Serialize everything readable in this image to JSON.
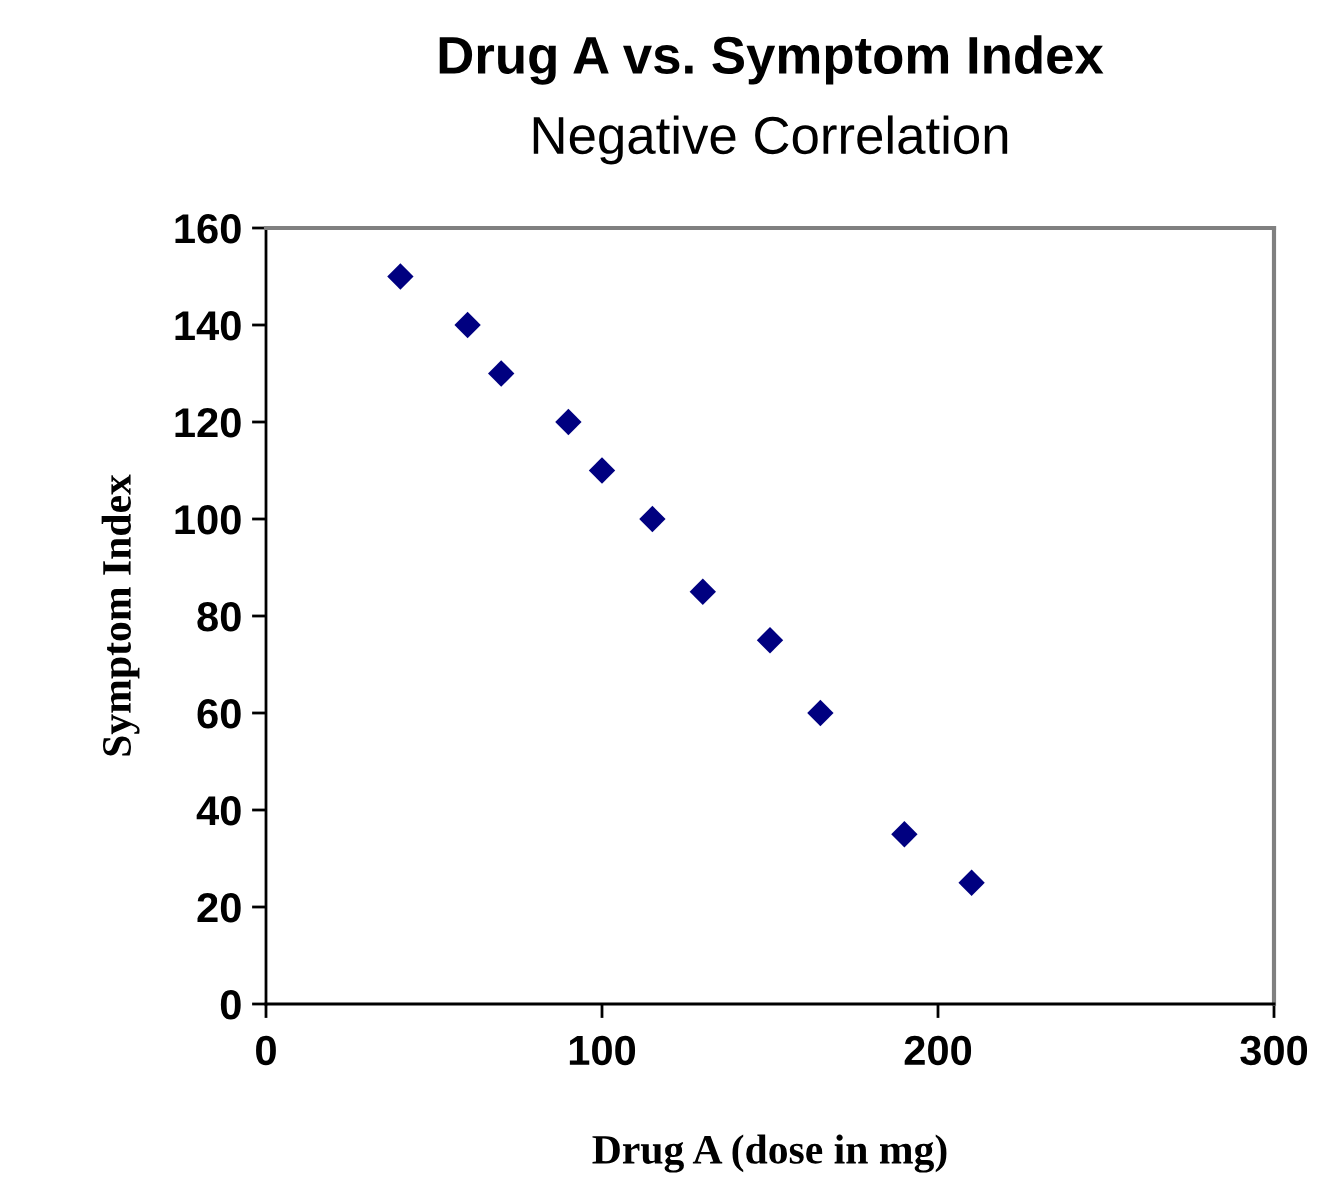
{
  "chart_data": {
    "type": "scatter",
    "title": "Drug A vs. Symptom Index",
    "subtitle": "Negative Correlation",
    "xlabel": "Drug A (dose in mg)",
    "ylabel": "Symptom Index",
    "x": [
      40,
      60,
      70,
      90,
      100,
      115,
      130,
      150,
      165,
      190,
      210
    ],
    "values": [
      150,
      140,
      130,
      120,
      110,
      100,
      85,
      75,
      60,
      35,
      25
    ],
    "color": "#000080",
    "marker": "diamond",
    "xlim": [
      0,
      300
    ],
    "xticks": [
      0,
      100,
      200,
      300
    ],
    "ylim": [
      0,
      160
    ],
    "yticks": [
      0,
      20,
      40,
      60,
      80,
      100,
      120,
      140,
      160
    ],
    "grid": false,
    "legend": false
  }
}
